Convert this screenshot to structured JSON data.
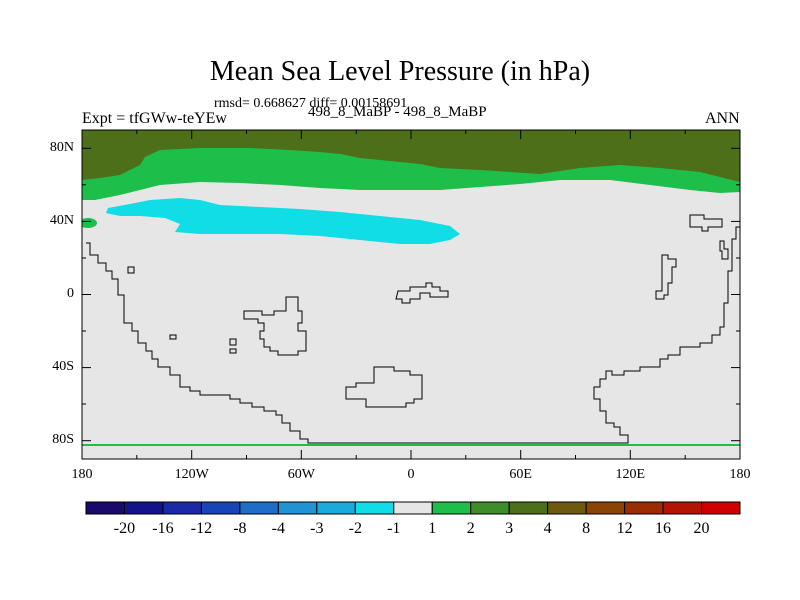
{
  "title": "Mean Sea Level Pressure (in hPa)",
  "stats": "rmsd= 0.668627 diff= 0.00158691",
  "experiment": "Expt = tfGWw-teYEw",
  "case_labels": "498_8_MaBP - 498_8_MaBP",
  "season": "ANN",
  "y_axis": {
    "ticks": [
      "80N",
      "40N",
      "0",
      "40S",
      "80S"
    ]
  },
  "x_axis": {
    "ticks": [
      "180",
      "120W",
      "60W",
      "0",
      "60E",
      "120E",
      "180"
    ]
  },
  "colorbar": {
    "colors": [
      "#1b0a6e",
      "#13138c",
      "#1a2aa6",
      "#1745b8",
      "#1e6ec8",
      "#1f93d3",
      "#19abdc",
      "#11dde6",
      "#e6e6e6",
      "#1dbf4a",
      "#3e8c2a",
      "#4d6f1a",
      "#6e5a0e",
      "#8c4404",
      "#9b2d03",
      "#b41404",
      "#d10000"
    ],
    "labels": [
      "-20",
      "-16",
      "-12",
      "-8",
      "-4",
      "-3",
      "-2",
      "-1",
      "1",
      "2",
      "3",
      "4",
      "8",
      "12",
      "16",
      "20"
    ]
  },
  "chart_data": {
    "type": "map",
    "variable": "Mean Sea Level Pressure difference",
    "units": "hPa",
    "lon_range": [
      -180,
      180
    ],
    "lat_range": [
      -90,
      90
    ],
    "levels": [
      -20,
      -16,
      -12,
      -8,
      -4,
      -3,
      -2,
      -1,
      1,
      2,
      3,
      4,
      8,
      12,
      16,
      20
    ],
    "regions": [
      {
        "name": "northern polar cap",
        "interval": "3 to 4",
        "color": "#4d6f1a"
      },
      {
        "name": "subpolar band (~50N-70N)",
        "interval": "1 to 2",
        "color": "#1dbf4a"
      },
      {
        "name": "north Pacific trough (~30N-45N)",
        "interval": "-2 to -1",
        "color": "#11dde6"
      },
      {
        "name": "rest of globe",
        "interval": "-1 to 1",
        "color": "#e6e6e6"
      }
    ]
  },
  "colors": {
    "background": "#ffffff",
    "neutral_fill": "#e6e6e6",
    "coastline": "#000000"
  }
}
